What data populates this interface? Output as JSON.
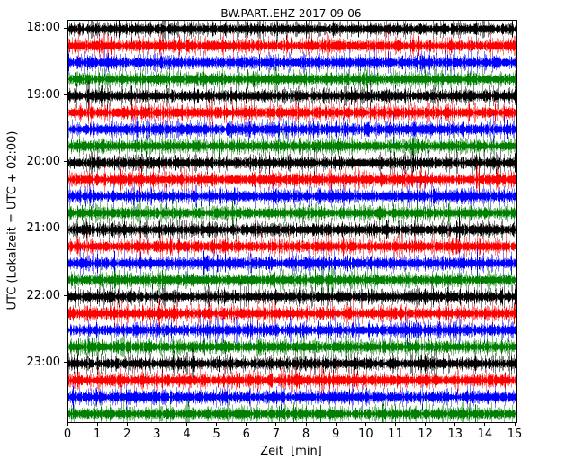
{
  "figure": {
    "title": "BW.PART..EHZ 2017-09-06",
    "xlabel": "Zeit  [min]",
    "ylabel": "UTC (Lokalzeit = UTC + 02:00)"
  },
  "chart_data": {
    "type": "line",
    "subtype": "helicorder-dayplot",
    "title": "BW.PART..EHZ 2017-09-06",
    "station_id": "BW.PART..EHZ",
    "date": "2017-09-06",
    "xlabel": "Zeit  [min]",
    "ylabel": "UTC (Lokalzeit = UTC + 02:00)",
    "xlim": [
      0,
      15
    ],
    "x_ticks": [
      0,
      1,
      2,
      3,
      4,
      5,
      6,
      7,
      8,
      9,
      10,
      11,
      12,
      13,
      14,
      15
    ],
    "minutes_per_line": 15,
    "grid": false,
    "legend": "none",
    "color_cycle": [
      "#000000",
      "#ff0000",
      "#0000ff",
      "#008000"
    ],
    "content": "continuous background seismic noise bands, no distinct events visible",
    "y_tick_labels": [
      "18:00",
      "19:00",
      "20:00",
      "21:00",
      "22:00",
      "23:00"
    ],
    "traces": [
      {
        "time": "18:00",
        "label": "18:00",
        "color": "#000000"
      },
      {
        "time": "18:15",
        "label": "",
        "color": "#ff0000"
      },
      {
        "time": "18:30",
        "label": "",
        "color": "#0000ff"
      },
      {
        "time": "18:45",
        "label": "",
        "color": "#008000"
      },
      {
        "time": "19:00",
        "label": "19:00",
        "color": "#000000"
      },
      {
        "time": "19:15",
        "label": "",
        "color": "#ff0000"
      },
      {
        "time": "19:30",
        "label": "",
        "color": "#0000ff"
      },
      {
        "time": "19:45",
        "label": "",
        "color": "#008000"
      },
      {
        "time": "20:00",
        "label": "20:00",
        "color": "#000000"
      },
      {
        "time": "20:15",
        "label": "",
        "color": "#ff0000"
      },
      {
        "time": "20:30",
        "label": "",
        "color": "#0000ff"
      },
      {
        "time": "20:45",
        "label": "",
        "color": "#008000"
      },
      {
        "time": "21:00",
        "label": "21:00",
        "color": "#000000"
      },
      {
        "time": "21:15",
        "label": "",
        "color": "#ff0000"
      },
      {
        "time": "21:30",
        "label": "",
        "color": "#0000ff"
      },
      {
        "time": "21:45",
        "label": "",
        "color": "#008000"
      },
      {
        "time": "22:00",
        "label": "22:00",
        "color": "#000000"
      },
      {
        "time": "22:15",
        "label": "",
        "color": "#ff0000"
      },
      {
        "time": "22:30",
        "label": "",
        "color": "#0000ff"
      },
      {
        "time": "22:45",
        "label": "",
        "color": "#008000"
      },
      {
        "time": "23:00",
        "label": "23:00",
        "color": "#000000"
      },
      {
        "time": "23:15",
        "label": "",
        "color": "#ff0000"
      },
      {
        "time": "23:30",
        "label": "",
        "color": "#0000ff"
      },
      {
        "time": "23:45",
        "label": "",
        "color": "#008000"
      }
    ]
  }
}
